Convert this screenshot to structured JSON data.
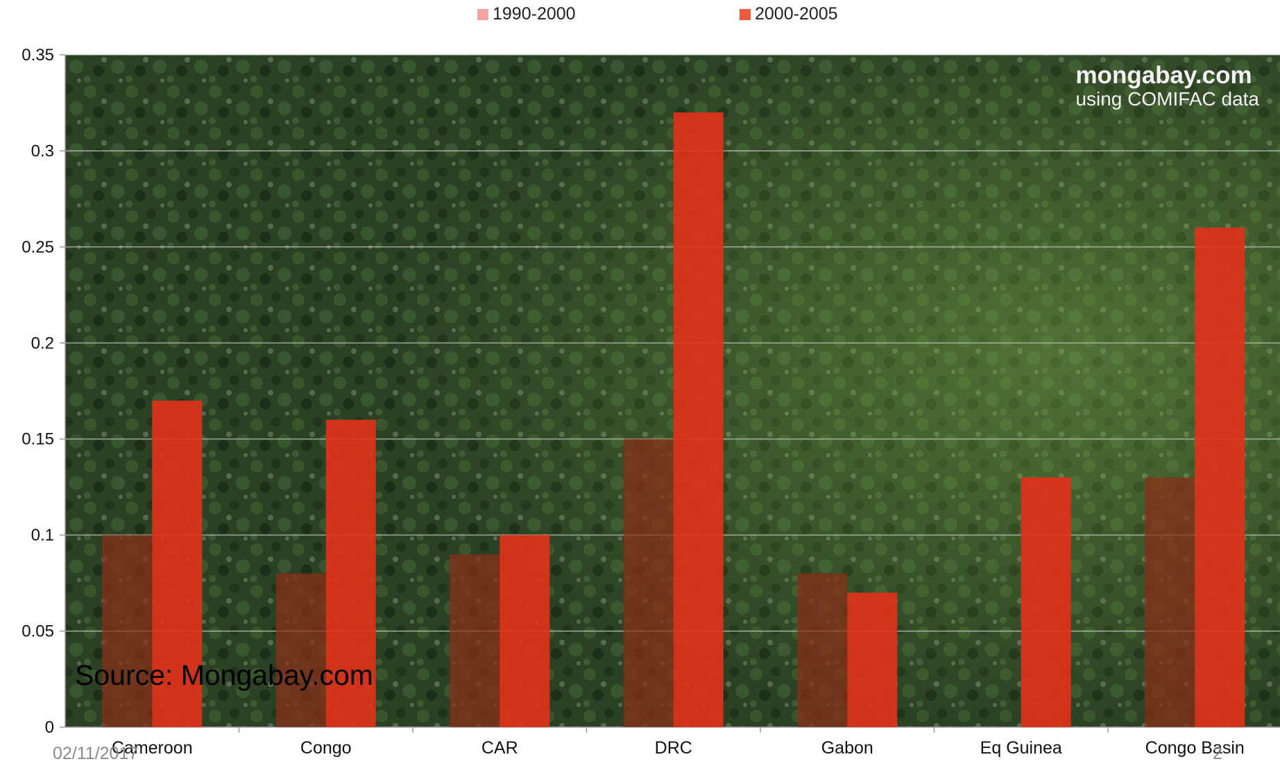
{
  "chart_data": {
    "type": "bar",
    "categories": [
      "Cameroon",
      "Congo",
      "CAR",
      "DRC",
      "Gabon",
      "Eq Guinea",
      "Congo Basin"
    ],
    "series": [
      {
        "name": "1990-2000",
        "values": [
          0.1,
          0.08,
          0.09,
          0.15,
          0.08,
          0.0,
          0.13
        ],
        "color": "#8a2e18"
      },
      {
        "name": "2000-2005",
        "values": [
          0.17,
          0.16,
          0.1,
          0.32,
          0.07,
          0.13,
          0.26
        ],
        "color": "#e0321a"
      }
    ],
    "yticks": [
      "0",
      "0.05",
      "0.1",
      "0.15",
      "0.2",
      "0.25",
      "0.3",
      "0.35"
    ],
    "ylim": [
      0,
      0.35
    ],
    "grid": true,
    "legend_position": "top-center",
    "title": "",
    "xlabel": "",
    "ylabel": ""
  },
  "legend": {
    "items": [
      {
        "label": "1990-2000",
        "color": "#f4a3a0"
      },
      {
        "label": "2000-2005",
        "color": "#ee5a3a"
      }
    ]
  },
  "watermark": {
    "brand": "mongabay.com",
    "subtitle": "using COMIFAC data"
  },
  "footer": {
    "source": "Source: Mongabay.com",
    "date": "02/11/2017",
    "page_number": "2"
  },
  "colors": {
    "plot_background": "#2c4324",
    "gridline": "#c9cfc4"
  }
}
